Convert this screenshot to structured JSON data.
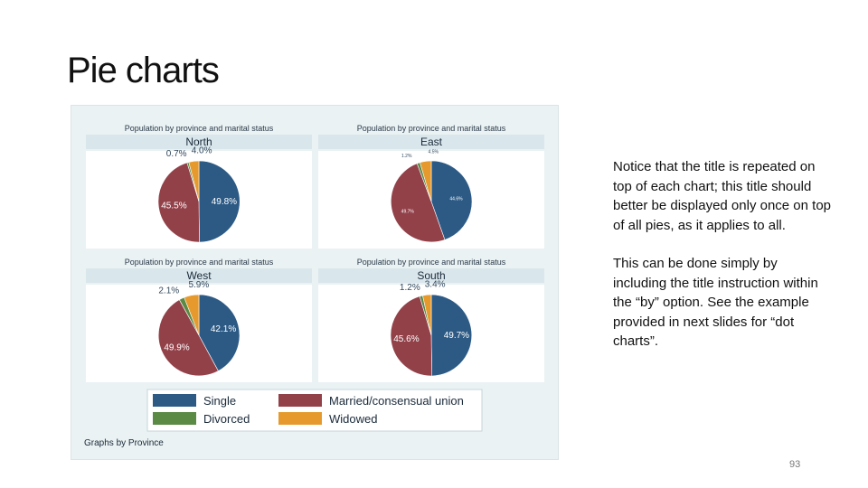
{
  "slide": {
    "title": "Pie charts",
    "paragraphs": [
      "Notice that the title is repeated on top of each chart; this title should better be displayed only once on top of all pies, as it applies to all.",
      "This can be done simply by including the title instruction within the “by” option. See the example provided in next slides for “dot charts”."
    ],
    "page_number": "93"
  },
  "colors": {
    "Single": "#2c5a85",
    "Married/consensual union": "#924149",
    "Divorced": "#5b8a45",
    "Widowed": "#e69a2e",
    "background": "#eaf2f3",
    "panel": "#ffffff",
    "strip": "#d9e6eb"
  },
  "chart_data": [
    {
      "type": "pie",
      "title": "Population by province and marital status",
      "subtitle": "North",
      "categories": [
        "Single",
        "Married/consensual union",
        "Divorced",
        "Widowed"
      ],
      "values": [
        49.8,
        45.5,
        0.7,
        4.0
      ],
      "labels": [
        "49.8%",
        "45.5%",
        "0.7%",
        "4.0%"
      ]
    },
    {
      "type": "pie",
      "title": "Population by province and marital status",
      "subtitle": "East",
      "categories": [
        "Single",
        "Married/consensual union",
        "Divorced",
        "Widowed"
      ],
      "values": [
        44.6,
        49.7,
        1.2,
        4.5
      ],
      "labels": [
        "44.6%",
        "49.7%",
        "1.2%",
        "4.5%"
      ]
    },
    {
      "type": "pie",
      "title": "Population by province and marital status",
      "subtitle": "West",
      "categories": [
        "Single",
        "Married/consensual union",
        "Divorced",
        "Widowed"
      ],
      "values": [
        42.1,
        49.9,
        2.1,
        5.9
      ],
      "labels": [
        "42.1%",
        "49.9%",
        "2.1%",
        "5.9%"
      ]
    },
    {
      "type": "pie",
      "title": "Population by province and marital status",
      "subtitle": "South",
      "categories": [
        "Single",
        "Married/consensual union",
        "Divorced",
        "Widowed"
      ],
      "values": [
        49.7,
        45.6,
        1.2,
        3.4
      ],
      "labels": [
        "49.7%",
        "45.6%",
        "1.2%",
        "3.4%"
      ]
    }
  ],
  "legend": {
    "items": [
      "Single",
      "Married/consensual union",
      "Divorced",
      "Widowed"
    ],
    "placement": "bottom"
  },
  "note": "Graphs by Province"
}
